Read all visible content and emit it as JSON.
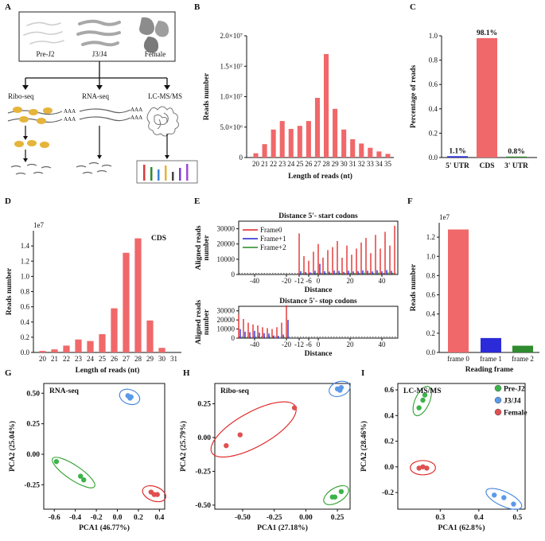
{
  "panels": {
    "A": {
      "label": "A",
      "stages": [
        "Pre-J2",
        "J3/J4",
        "Female"
      ],
      "methods": [
        "Ribo-seq",
        "RNA-seq",
        "LC-MS/MS"
      ],
      "poly_a": "AAA"
    },
    "B": {
      "label": "B",
      "chart_data": {
        "type": "bar",
        "categories": [
          "20",
          "21",
          "22",
          "23",
          "24",
          "25",
          "26",
          "27",
          "28",
          "29",
          "30",
          "31",
          "32",
          "33",
          "34",
          "35"
        ],
        "values": [
          700000,
          2200000,
          4600000,
          6000000,
          4700000,
          5200000,
          6000000,
          9800000,
          17000000,
          8000000,
          4600000,
          3000000,
          2300000,
          1600000,
          1000000,
          600000
        ],
        "ylabel": "Reads number",
        "xlabel": "Length of reads (nt)",
        "ylim": [
          0,
          20000000
        ],
        "yticks": [
          0,
          5000000,
          10000000,
          15000000,
          20000000
        ],
        "ytick_labels": [
          "0",
          "5.0×10⁶",
          "1.0×10⁷",
          "1.5×10⁷",
          "2.0×10⁷"
        ],
        "color": "#f0686a"
      }
    },
    "C": {
      "label": "C",
      "chart_data": {
        "type": "bar",
        "categories": [
          "5' UTR",
          "CDS",
          "3' UTR"
        ],
        "values": [
          0.011,
          0.981,
          0.008
        ],
        "data_labels": [
          "1.1%",
          "98.1%",
          "0.8%"
        ],
        "bar_colors": [
          "#2b2bd9",
          "#f0686a",
          "#2e8b2e"
        ],
        "ylabel": "Percentage of reads",
        "ylim": [
          0,
          1.0
        ],
        "yticks": [
          0,
          0.2,
          0.4,
          0.6,
          0.8,
          1.0
        ],
        "ytick_labels": [
          "0.0",
          "0.2",
          "0.4",
          "0.6",
          "0.8",
          "1.0"
        ]
      }
    },
    "D": {
      "label": "D",
      "chart_data": {
        "type": "bar",
        "title": "CDS",
        "multiplier": "1e7",
        "categories": [
          "20",
          "21",
          "22",
          "23",
          "24",
          "25",
          "26",
          "27",
          "28",
          "29",
          "30",
          "31"
        ],
        "values": [
          0.02,
          0.04,
          0.09,
          0.17,
          0.15,
          0.24,
          0.58,
          1.31,
          1.5,
          0.42,
          0.06,
          0.0
        ],
        "ylabel": "Reads number",
        "xlabel": "Length of reads (nt)",
        "ylim": [
          0,
          1.6
        ],
        "yticks": [
          0,
          0.2,
          0.4,
          0.6,
          0.8,
          1.0,
          1.2,
          1.4
        ],
        "ytick_labels": [
          "0.0",
          "0.2",
          "0.4",
          "0.6",
          "0.8",
          "1.0",
          "1.2",
          "1.4"
        ],
        "color": "#f0686a"
      }
    },
    "E": {
      "label": "E",
      "legend": [
        "Frame0",
        "Frame+1",
        "Frame+2"
      ],
      "legend_colors": [
        "#e02020",
        "#2020d0",
        "#208a20"
      ],
      "top": {
        "chart_data": {
          "type": "bar",
          "title": "Distance 5'- start codons",
          "ylabel": "Aligned reads number",
          "xlabel": "Distance",
          "xlim": [
            -50,
            50
          ],
          "xticks": [
            -40,
            -20,
            -12,
            -6,
            0,
            20,
            40
          ],
          "ylim": [
            0,
            35000
          ],
          "yticks": [
            0,
            10000,
            20000,
            30000
          ],
          "ytick_labels": [
            "0",
            "10000",
            "20000",
            "30000"
          ],
          "frame0": {
            "x": [
              -12,
              -9,
              -6,
              -3,
              0,
              3,
              6,
              9,
              12,
              15,
              18,
              21,
              24,
              27,
              30,
              33,
              36,
              39,
              42,
              45,
              48
            ],
            "values": [
              27000,
              12000,
              9000,
              15000,
              20000,
              11000,
              16000,
              18000,
              22000,
              11000,
              19000,
              13000,
              17000,
              21000,
              24000,
              14000,
              26000,
              17000,
              28000,
              19000,
              32000
            ]
          },
          "frame1": {
            "x": [
              -11,
              -8,
              -5,
              -2,
              1,
              4,
              7,
              10,
              13,
              16,
              19,
              22,
              25,
              28,
              31,
              34,
              37,
              40,
              43,
              46
            ],
            "values": [
              2200,
              1600,
              1400,
              2400,
              7000,
              2100,
              1900,
              2600,
              2300,
              1700,
              2500,
              2000,
              2200,
              2700,
              2500,
              2000,
              2800,
              2100,
              2900,
              2400
            ]
          },
          "frame2": {
            "x": [
              -10,
              -7,
              -4,
              -1,
              2,
              5,
              8,
              11,
              14,
              17,
              20,
              23,
              26,
              29,
              32,
              35,
              38,
              41,
              44,
              47
            ],
            "values": [
              900,
              700,
              800,
              1000,
              1200,
              900,
              1000,
              1100,
              1000,
              900,
              1100,
              1000,
              1000,
              1200,
              1100,
              900,
              1200,
              1000,
              1300,
              1100
            ]
          }
        }
      },
      "bottom": {
        "chart_data": {
          "type": "bar",
          "title": "Distance 5'- stop codons",
          "ylabel": "Aligned reads number",
          "xlabel": "Distance",
          "xlim": [
            -50,
            50
          ],
          "xticks": [
            -40,
            -20,
            -12,
            -6,
            0,
            20,
            40
          ],
          "ylim": [
            0,
            35000
          ],
          "yticks": [
            0,
            10000,
            20000,
            30000
          ],
          "ytick_labels": [
            "0",
            "10000",
            "20000",
            "30000"
          ],
          "frame0": {
            "x": [
              -50,
              -47,
              -44,
              -41,
              -38,
              -35,
              -32,
              -29,
              -26,
              -23,
              -20
            ],
            "values": [
              26000,
              21000,
              17000,
              15000,
              14000,
              12000,
              11000,
              10000,
              12000,
              17000,
              36000
            ]
          },
          "frame1": {
            "x": [
              -49,
              -46,
              -43,
              -40,
              -37,
              -34,
              -31,
              -28,
              -25,
              -22,
              -19
            ],
            "values": [
              10000,
              7000,
              6500,
              8000,
              6000,
              5500,
              5000,
              3000,
              2500,
              4000,
              20000
            ]
          },
          "frame2": {
            "x": [
              -48,
              -45,
              -42,
              -39,
              -36,
              -33,
              -30,
              -27,
              -24,
              -21
            ],
            "values": [
              1200,
              1000,
              900,
              1100,
              900,
              800,
              700,
              600,
              500,
              800
            ]
          }
        }
      }
    },
    "F": {
      "label": "F",
      "chart_data": {
        "type": "bar",
        "multiplier": "1e7",
        "categories": [
          "frame 0",
          "frame 1",
          "frame 2"
        ],
        "values": [
          1.28,
          0.15,
          0.07
        ],
        "bar_colors": [
          "#f0686a",
          "#2b2bd9",
          "#2e8b2e"
        ],
        "ylabel": "Reads number",
        "xlabel": "Reading frame",
        "ylim": [
          0,
          1.35
        ],
        "yticks": [
          0,
          0.2,
          0.4,
          0.6,
          0.8,
          1.0,
          1.2
        ],
        "ytick_labels": [
          "0.0",
          "0.2",
          "0.4",
          "0.6",
          "0.8",
          "1.0",
          "1.2"
        ]
      }
    },
    "G": {
      "label": "G",
      "chart_data": {
        "type": "scatter",
        "title": "RNA-seq",
        "xlabel": "PCA1 (46.77%)",
        "ylabel": "PCA2 (25.04%)",
        "xlim": [
          -0.7,
          0.45
        ],
        "ylim": [
          -0.45,
          0.58
        ],
        "xticks": [
          -0.6,
          -0.4,
          -0.2,
          0.0,
          0.2,
          0.4
        ],
        "xtick_labels": [
          "-0.6",
          "-0.4",
          "-0.2",
          "0.0",
          "0.2",
          "0.4"
        ],
        "yticks": [
          -0.25,
          0.0,
          0.25,
          0.5
        ],
        "ytick_labels": [
          "-0.25",
          "0.00",
          "0.25",
          "0.50"
        ],
        "series": [
          {
            "name": "Pre-J2",
            "color": "#3cb34a",
            "x": [
              -0.58,
              -0.35,
              -0.32
            ],
            "y": [
              -0.06,
              -0.18,
              -0.21
            ]
          },
          {
            "name": "J3/J4",
            "color": "#5a9ae8",
            "x": [
              0.1,
              0.12,
              0.13
            ],
            "y": [
              0.48,
              0.46,
              0.47
            ]
          },
          {
            "name": "Female",
            "color": "#e05050",
            "x": [
              0.32,
              0.35,
              0.38
            ],
            "y": [
              -0.31,
              -0.33,
              -0.33
            ]
          }
        ]
      }
    },
    "H": {
      "label": "H",
      "chart_data": {
        "type": "scatter",
        "title": "Ribo-seq",
        "xlabel": "PCA1 (27.18%)",
        "ylabel": "PCA2 (25.79%)",
        "xlim": [
          -0.72,
          0.35
        ],
        "ylim": [
          -0.53,
          0.4
        ],
        "xticks": [
          -0.5,
          -0.25,
          0.0,
          0.25
        ],
        "xtick_labels": [
          "-0.50",
          "-0.25",
          "0.00",
          "0.25"
        ],
        "yticks": [
          -0.5,
          -0.25,
          0.0,
          0.25
        ],
        "ytick_labels": [
          "-0.50",
          "-0.25",
          "0.00",
          "0.25"
        ],
        "series": [
          {
            "name": "Pre-J2",
            "color": "#3cb34a",
            "x": [
              0.21,
              0.23,
              0.28
            ],
            "y": [
              -0.44,
              -0.44,
              -0.4
            ]
          },
          {
            "name": "J3/J4",
            "color": "#5a9ae8",
            "x": [
              0.25,
              0.27,
              0.28
            ],
            "y": [
              0.36,
              0.35,
              0.37
            ]
          },
          {
            "name": "Female",
            "color": "#e05050",
            "x": [
              -0.63,
              -0.52,
              -0.09
            ],
            "y": [
              -0.06,
              0.02,
              0.22
            ]
          }
        ]
      }
    },
    "I": {
      "label": "I",
      "chart_data": {
        "type": "scatter",
        "title": "LC-MS/MS",
        "xlabel": "PCA1 (62.8%)",
        "ylabel": "PCA2 (28.46%)",
        "xlim": [
          0.19,
          0.52
        ],
        "ylim": [
          -0.33,
          0.65
        ],
        "xticks": [
          0.3,
          0.4,
          0.5
        ],
        "xtick_labels": [
          "0.3",
          "0.4",
          "0.5"
        ],
        "yticks": [
          -0.2,
          0.0,
          0.2,
          0.4,
          0.6
        ],
        "ytick_labels": [
          "-0.2",
          "0.0",
          "0.2",
          "0.4",
          "0.6"
        ],
        "series": [
          {
            "name": "Pre-J2",
            "color": "#3cb34a",
            "x": [
              0.245,
              0.255,
              0.26
            ],
            "y": [
              0.46,
              0.52,
              0.56
            ]
          },
          {
            "name": "J3/J4",
            "color": "#5a9ae8",
            "x": [
              0.44,
              0.465,
              0.49
            ],
            "y": [
              -0.22,
              -0.24,
              -0.29
            ]
          },
          {
            "name": "Female",
            "color": "#e05050",
            "x": [
              0.245,
              0.255,
              0.265
            ],
            "y": [
              -0.01,
              0.0,
              -0.01
            ]
          }
        ],
        "legend": [
          "Pre-J2",
          "J3/J4",
          "Female"
        ]
      }
    }
  }
}
